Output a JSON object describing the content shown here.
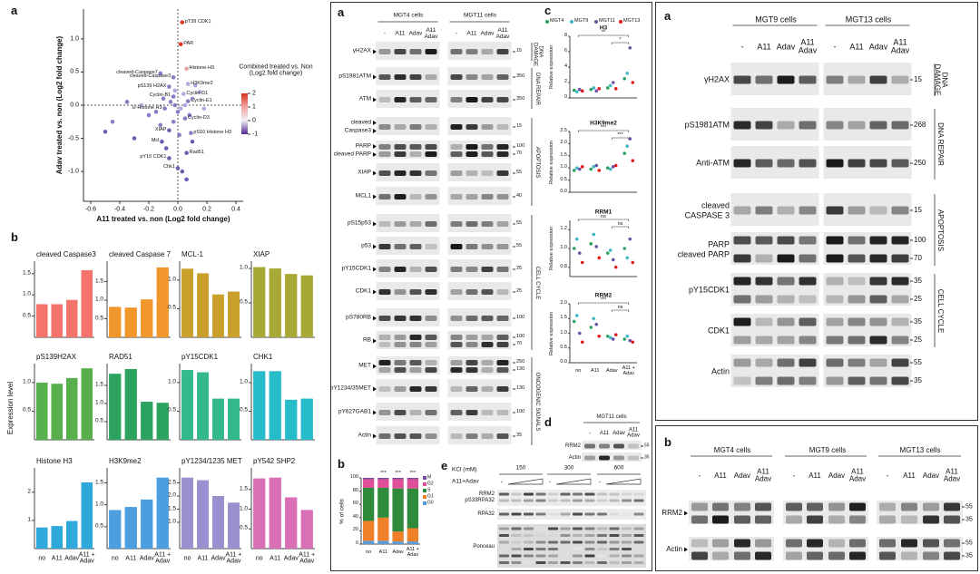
{
  "chart_data": [
    {
      "type": "scatter",
      "label": "a",
      "xlabel": "A11 treated vs. non (Log2 fold change)",
      "ylabel": "Adav treated vs. non (Log2 fold change)",
      "xlim": [
        -0.65,
        0.45
      ],
      "ylim": [
        -1.45,
        1.45
      ],
      "xticks": [
        -0.6,
        -0.4,
        -0.2,
        {
          "value": 0,
          "label": "0.0"
        },
        0.2,
        0.4
      ],
      "yticks": [
        {
          "value": -1,
          "label": "-1.0"
        },
        -0.5,
        {
          "value": 0,
          "label": "0.0"
        },
        0.5,
        {
          "value": 1,
          "label": "1.0"
        }
      ],
      "labels": [
        "pT39 CDK1",
        "PAR",
        "Histone-H3",
        "cleaved-Caspase7",
        "cleaved-Caspase3",
        "H3K9me2",
        "pS139 H2AX",
        "Cyclin-B1",
        "Cyclin-D1",
        "Cyclin-E1",
        "U-Histone H3",
        "Cyclin-D3",
        "XIAP",
        "pS10 Histone H3",
        "Mcl",
        "Rad51",
        "pY15 CDK1",
        "Chk1",
        null,
        null,
        null,
        null,
        null,
        null,
        null,
        null,
        null,
        null,
        null,
        null,
        null,
        null,
        null,
        null,
        null,
        null,
        null,
        null,
        null,
        null,
        null,
        null,
        null,
        null
      ],
      "x": [
        0.03,
        0.02,
        0.06,
        -0.12,
        -0.03,
        0.07,
        -0.06,
        -0.03,
        0.04,
        0.07,
        -0.09,
        0.05,
        -0.06,
        0.09,
        -0.11,
        0.06,
        -0.06,
        0.0,
        -0.02,
        0.02,
        -0.05,
        0.0,
        0.05,
        -0.1,
        -0.15,
        0.1,
        -0.03,
        0.08,
        -0.2,
        -0.25,
        -0.5,
        -0.45,
        -0.3,
        0.1,
        0.18,
        -0.08,
        0.03,
        0.06,
        -0.02,
        0.12,
        -0.12,
        0.01,
        0.15,
        -0.35
      ],
      "y": [
        1.25,
        0.92,
        0.55,
        0.48,
        0.42,
        0.32,
        0.28,
        0.13,
        0.17,
        0.06,
        -0.05,
        -0.2,
        -0.38,
        -0.42,
        -0.55,
        -0.72,
        -0.8,
        -0.95,
        0.0,
        -0.05,
        0.05,
        -0.1,
        0.0,
        0.1,
        -0.1,
        0.1,
        -0.25,
        -0.15,
        -0.15,
        0.0,
        -0.4,
        -0.25,
        -0.5,
        -0.55,
        -0.05,
        -0.65,
        -1.0,
        -1.12,
        0.22,
        0.3,
        -0.3,
        -0.45,
        0.2,
        0.05
      ],
      "colors": [
        "#e0352b",
        "#e0352b",
        "#e6a0a6",
        "#8a7cc4",
        "#8a7cc4",
        "#b3a8dd",
        "#8a7cc4",
        "#8a7cc4",
        "#b3a8dd",
        "#8a7cc4",
        "#8a7cc4",
        "#8a7cc4",
        "#6f5fb0",
        "#8a7cc4",
        "#6f5fb0",
        "#6f5fb0",
        "#6f5fb0",
        "#6f5fb0",
        "#8a7cc4",
        "#b3a8dd",
        "#8a7cc4",
        "#8a7cc4",
        "#b3a8dd",
        "#8a7cc4",
        "#8a7cc4",
        "#b3a8dd",
        "#8a7cc4",
        "#8a7cc4",
        "#8a7cc4",
        "#b3a8dd",
        "#6f5fb0",
        "#8a7cc4",
        "#6f5fb0",
        "#6f5fb0",
        "#b3a8dd",
        "#6f5fb0",
        "#6f5fb0",
        "#6f5fb0",
        "#b3a8dd",
        "#b3a8dd",
        "#8a7cc4",
        "#8a7cc4",
        "#b3a8dd",
        "#8a7cc4"
      ],
      "colorbar": {
        "title": "Combined treated vs. Non (Log2 fold change)",
        "ticks": [
          2,
          1,
          0,
          -1
        ]
      }
    },
    {
      "type": "bar",
      "panel_label": "b",
      "ylabel": "Expression level",
      "title": "cleaved Caspase3",
      "color": "#f4736b",
      "values": [
        0.78,
        0.78,
        0.88,
        1.58
      ],
      "ylim": [
        0,
        1.75
      ],
      "yticks": [
        0.5,
        {
          "value": 1,
          "label": "1.0"
        },
        1.5
      ]
    },
    {
      "type": "bar",
      "title": "cleaved Caspase 7",
      "color": "#f0962a",
      "values": [
        0.82,
        0.8,
        1.02,
        1.88
      ],
      "ylim": [
        0,
        2
      ],
      "yticks": [
        0.5,
        {
          "value": 1,
          "label": "1.0"
        },
        1.5
      ]
    },
    {
      "type": "bar",
      "title": "MCL-1",
      "color": "#c9a02c",
      "values": [
        1.2,
        1.12,
        0.75,
        0.8
      ],
      "ylim": [
        0,
        1.3
      ],
      "yticks": [
        0.5,
        {
          "value": 1,
          "label": "1.0"
        }
      ]
    },
    {
      "type": "bar",
      "title": "XIAP",
      "color": "#a7a836",
      "values": [
        1.02,
        1.0,
        0.92,
        0.9
      ],
      "ylim": [
        0,
        1.08
      ],
      "yticks": [
        0.5,
        {
          "value": 1,
          "label": "1.0"
        }
      ]
    },
    {
      "type": "bar",
      "title": "pS139H2AX",
      "color": "#57b04c",
      "values": [
        1.0,
        0.98,
        1.08,
        1.25
      ],
      "ylim": [
        0,
        1.3
      ],
      "yticks": [
        0.5,
        {
          "value": 1,
          "label": "1.0"
        }
      ]
    },
    {
      "type": "bar",
      "title": "RAD51",
      "color": "#2ca25f",
      "values": [
        1.82,
        1.95,
        1.05,
        1.02
      ],
      "ylim": [
        0,
        2.05
      ],
      "yticks": [
        0.5,
        {
          "value": 1,
          "label": "1.0"
        },
        1.5
      ]
    },
    {
      "type": "bar",
      "title": "pY15CDK1",
      "color": "#33b98c",
      "values": [
        1.22,
        1.18,
        0.72,
        0.72
      ],
      "ylim": [
        0,
        1.3
      ],
      "yticks": [
        0.5,
        {
          "value": 1,
          "label": "1.0"
        }
      ]
    },
    {
      "type": "bar",
      "title": "CHK1",
      "color": "#26bcc9",
      "values": [
        1.2,
        1.2,
        0.7,
        0.72
      ],
      "ylim": [
        0,
        1.3
      ],
      "yticks": [
        0.5,
        {
          "value": 1,
          "label": "1.0"
        }
      ]
    },
    {
      "type": "bar",
      "title": "Histone H3",
      "color": "#2fa8dc",
      "categories": [
        "no",
        "A11",
        "Adav",
        "A11 + Adav"
      ],
      "values": [
        0.75,
        0.8,
        0.98,
        2.35
      ],
      "ylim": [
        0,
        2.8
      ],
      "yticks": [
        1,
        2
      ]
    },
    {
      "type": "bar",
      "title": "H3K9me2",
      "color": "#4b9fe0",
      "categories": [
        "no",
        "A11",
        "Adav",
        "A11 + Adav"
      ],
      "values": [
        0.88,
        0.95,
        1.12,
        1.62
      ],
      "ylim": [
        0,
        1.8
      ],
      "yticks": [
        0.5,
        {
          "value": 1,
          "label": "1.0"
        },
        1.5
      ]
    },
    {
      "type": "bar",
      "title": "pY1234/1235 MET",
      "color": "#9b8fd0",
      "categories": [
        "no",
        "A11",
        "Adav",
        "A11 + Adav"
      ],
      "values": [
        2.7,
        2.6,
        2.0,
        1.75
      ],
      "ylim": [
        0,
        3
      ],
      "yticks": [
        {
          "value": 1,
          "label": "1.0"
        },
        1.5,
        {
          "value": 2,
          "label": "2.0"
        },
        2.5
      ]
    },
    {
      "type": "bar",
      "title": "pY542 SHP2",
      "color": "#d970b6",
      "categories": [
        "no",
        "A11",
        "Adav",
        "A11 + Adav"
      ],
      "values": [
        1.78,
        1.8,
        1.3,
        0.98
      ],
      "ylim": [
        0,
        2.0
      ],
      "yticks": [
        0.5,
        {
          "value": 1,
          "label": "1.0"
        },
        1.5
      ]
    },
    {
      "type": "dot",
      "panel_label": "c",
      "ylabel": "Relative expression",
      "title": "H3",
      "ylim": [
        0,
        8
      ],
      "yticks": [
        0,
        2,
        4,
        6,
        8
      ],
      "annotations": [
        "**",
        "*"
      ],
      "series": [
        {
          "name": "MGT4",
          "color": "#2ca25f",
          "values": [
            1.0,
            1.1,
            1.3,
            2.5
          ]
        },
        {
          "name": "MGT9",
          "color": "#41b6c4",
          "values": [
            0.8,
            1.3,
            1.6,
            3.2
          ]
        },
        {
          "name": "MGT11",
          "color": "#6a51a3",
          "values": [
            1.1,
            0.9,
            2.0,
            6.5
          ]
        },
        {
          "name": "MGT13",
          "color": "#e31a1c",
          "values": [
            0.9,
            1.2,
            1.2,
            2.0
          ]
        }
      ]
    },
    {
      "type": "dot",
      "title": "H3K9me2",
      "ylim": [
        0,
        2.5
      ],
      "yticks": [
        {
          "value": 0,
          "label": "0.0"
        },
        0.5,
        {
          "value": 1,
          "label": "1.0"
        },
        1.5,
        {
          "value": 2,
          "label": "2.0"
        },
        2.5
      ],
      "annotations": [
        "***",
        "***"
      ],
      "series": [
        {
          "color": "#2ca25f",
          "values": [
            0.9,
            0.95,
            1.0,
            1.6
          ]
        },
        {
          "color": "#41b6c4",
          "values": [
            1.0,
            1.05,
            0.95,
            1.9
          ]
        },
        {
          "color": "#6a51a3",
          "values": [
            0.95,
            1.1,
            1.05,
            2.2
          ]
        },
        {
          "color": "#e31a1c",
          "values": [
            1.05,
            0.9,
            1.1,
            1.3
          ]
        }
      ]
    },
    {
      "type": "dot",
      "title": "RRM1",
      "ylim": [
        0.7,
        1.3
      ],
      "yticks": [
        0.8,
        {
          "value": 1,
          "label": "1.0"
        },
        1.2
      ],
      "annotations": [
        "ns",
        "ns"
      ],
      "series": [
        {
          "color": "#2ca25f",
          "values": [
            1.0,
            1.05,
            0.95,
            1.0
          ]
        },
        {
          "color": "#41b6c4",
          "values": [
            1.1,
            1.15,
            0.98,
            0.9
          ]
        },
        {
          "color": "#6a51a3",
          "values": [
            0.95,
            1.02,
            0.88,
            1.1
          ]
        },
        {
          "color": "#e31a1c",
          "values": [
            0.85,
            0.9,
            0.8,
            0.85
          ]
        }
      ]
    },
    {
      "type": "dot",
      "title": "RRM2",
      "categories": [
        "no",
        "A11",
        "Adav",
        "A11 + Adav"
      ],
      "ylim": [
        0,
        2
      ],
      "yticks": [
        {
          "value": 0,
          "label": "0.0"
        },
        0.5,
        {
          "value": 1,
          "label": "1.0"
        },
        1.5,
        {
          "value": 2,
          "label": "2.0"
        }
      ],
      "annotations": [
        "***",
        "ns"
      ],
      "series": [
        {
          "color": "#2ca25f",
          "values": [
            1.4,
            1.2,
            0.9,
            0.8
          ]
        },
        {
          "color": "#41b6c4",
          "values": [
            1.6,
            1.5,
            0.85,
            0.9
          ]
        },
        {
          "color": "#6a51a3",
          "values": [
            1.0,
            1.3,
            0.8,
            0.75
          ]
        },
        {
          "color": "#e31a1c",
          "values": [
            0.7,
            0.9,
            0.95,
            0.7
          ]
        }
      ]
    },
    {
      "type": "stacked_bar",
      "panel_label": "b",
      "ylabel": "% of cells",
      "categories": [
        "no",
        "A11",
        "Adav",
        "A11 + Adav"
      ],
      "ylim": [
        0,
        100
      ],
      "yticks": [
        0,
        20,
        40,
        60,
        80,
        100
      ],
      "annotations": [
        "***",
        "***",
        "***"
      ],
      "series": [
        {
          "name": "G0",
          "color": "#5b9bd5",
          "values": [
            5,
            5,
            4,
            4
          ]
        },
        {
          "name": "G1",
          "color": "#f07f2a",
          "values": [
            30,
            35,
            15,
            20
          ]
        },
        {
          "name": "S",
          "color": "#2e8b3c",
          "values": [
            50,
            45,
            65,
            60
          ]
        },
        {
          "name": "G2",
          "color": "#e0509a",
          "values": [
            13,
            13,
            14,
            14
          ]
        },
        {
          "name": "M",
          "color": "#7b4aa0",
          "values": [
            2,
            2,
            2,
            2
          ]
        }
      ]
    }
  ],
  "blot_middle": {
    "label": "a",
    "cells": [
      "MGT4 cells",
      "MGT11 cells"
    ],
    "lanes": [
      "-",
      "A11",
      "Adav",
      "A11 Adav"
    ],
    "rows": [
      {
        "labels": [
          "γH2AX"
        ],
        "mw": [
          15
        ]
      },
      {
        "labels": [
          "pS1981ATM"
        ],
        "mw": [
          350
        ]
      },
      {
        "labels": [
          "ATM"
        ],
        "mw": [
          350
        ]
      },
      {
        "labels": [
          "cleaved",
          "Caspase3"
        ],
        "mw": [
          15
        ]
      },
      {
        "labels": [
          "PARP",
          "cleaved PARP"
        ],
        "mw": [
          100,
          70
        ]
      },
      {
        "labels": [
          "XIAP"
        ],
        "mw": [
          55
        ]
      },
      {
        "labels": [
          "MCL1"
        ],
        "mw": [
          40
        ]
      },
      {
        "labels": [
          "pS15p53"
        ],
        "mw": [
          55
        ]
      },
      {
        "labels": [
          "p53"
        ],
        "mw": [
          55
        ]
      },
      {
        "labels": [
          "pY15CDK1"
        ],
        "mw": [
          25
        ]
      },
      {
        "labels": [
          "CDK1"
        ],
        "mw": [
          25
        ]
      },
      {
        "labels": [
          "pS780RB"
        ],
        "mw": [
          100
        ]
      },
      {
        "labels": [
          "RB"
        ],
        "mw": [
          100,
          70
        ]
      },
      {
        "labels": [
          "MET"
        ],
        "mw": [
          250,
          130
        ]
      },
      {
        "labels": [
          "pY1234/35MET"
        ],
        "mw": [
          130
        ]
      },
      {
        "labels": [
          "pY627GAB1"
        ],
        "mw": [
          100
        ]
      },
      {
        "labels": [
          "Actin"
        ],
        "mw": [
          35
        ]
      }
    ],
    "groups": [
      "DNA DAMAGE",
      "DNA REPAIR",
      "APOPTOSIS",
      "CELL CYCLE",
      "ONCOGENIC SIGNALS"
    ]
  },
  "blot_d": {
    "label": "d",
    "cells": [
      "MGT11 cells"
    ],
    "lanes": [
      "-",
      "A11",
      "Adav",
      "A11 Adav"
    ],
    "rows": [
      {
        "labels": [
          "RRM2"
        ],
        "mw": [
          55
        ]
      },
      {
        "labels": [
          "Actin"
        ],
        "mw": [
          35
        ]
      }
    ]
  },
  "blot_e": {
    "label": "e",
    "kcl_label": "KCl (mM)",
    "kcl": [
      150,
      300,
      600
    ],
    "treatment": "A11+Adav",
    "lane_minus": "-",
    "rows": [
      {
        "labels": [
          "RRM2",
          "pS33RPA32"
        ]
      },
      {
        "labels": [
          "RPA32"
        ]
      },
      {
        "labels": [
          "Ponceau"
        ]
      }
    ]
  },
  "blot_right": {
    "label": "a",
    "cells": [
      "MGT9 cells",
      "MGT13 cells"
    ],
    "lanes": [
      "-",
      "A11",
      "Adav",
      "A11 Adav"
    ],
    "rows": [
      {
        "labels": [
          "γH2AX"
        ],
        "mw": [
          15
        ]
      },
      {
        "labels": [
          "pS1981ATM"
        ],
        "mw": [
          268
        ]
      },
      {
        "labels": [
          "Anti-ATM"
        ],
        "mw": [
          250
        ]
      },
      {
        "labels": [
          "cleaved",
          "CASPASE 3"
        ],
        "mw": [
          15
        ]
      },
      {
        "labels": [
          "PARP",
          "cleaved PARP"
        ],
        "mw": [
          100,
          70
        ]
      },
      {
        "labels": [
          "pY15CDK1"
        ],
        "mw": [
          35,
          25
        ]
      },
      {
        "labels": [
          "CDK1"
        ],
        "mw": [
          35,
          25
        ]
      },
      {
        "labels": [
          "Actin"
        ],
        "mw": [
          55,
          35
        ]
      }
    ],
    "groups": [
      "DNA DAMAGE",
      "DNA REPAIR",
      "APOPTOSIS",
      "CELL CYCLE"
    ]
  },
  "blot_right_b": {
    "label": "b",
    "cells": [
      "MGT4 cells",
      "MGT9 cells",
      "MGT13 cells"
    ],
    "lanes": [
      "-",
      "A11",
      "Adav",
      "A11 Adav"
    ],
    "rows": [
      {
        "labels": [
          "RRM2"
        ],
        "mw": [
          55,
          35
        ]
      },
      {
        "labels": [
          "Actin"
        ],
        "mw": [
          55,
          35
        ]
      }
    ]
  }
}
